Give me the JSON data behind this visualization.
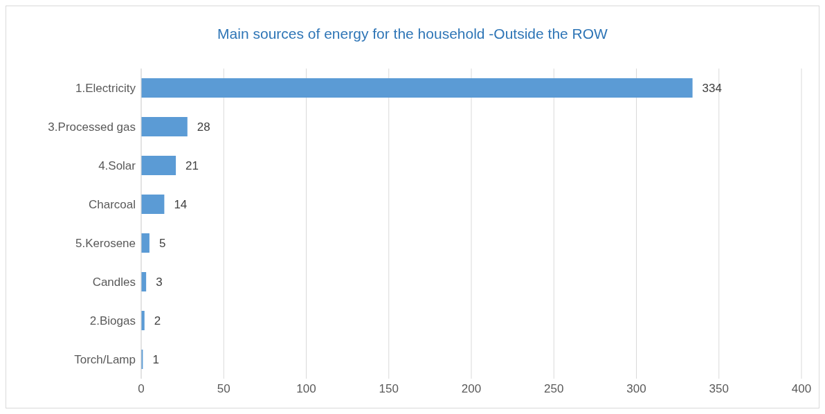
{
  "chart_data": {
    "type": "bar",
    "orientation": "horizontal",
    "title": "Main sources of energy for the household -Outside the ROW",
    "categories": [
      "1.Electricity",
      "3.Processed gas",
      "4.Solar",
      "Charcoal",
      "5.Kerosene",
      "Candles",
      "2.Biogas",
      "Torch/Lamp"
    ],
    "values": [
      334,
      28,
      21,
      14,
      5,
      3,
      2,
      1
    ],
    "color": "#5b9bd5",
    "xlim": [
      0,
      400
    ],
    "xticks": [
      0,
      50,
      100,
      150,
      200,
      250,
      300,
      350,
      400
    ],
    "grid": "x",
    "data_labels": true
  }
}
